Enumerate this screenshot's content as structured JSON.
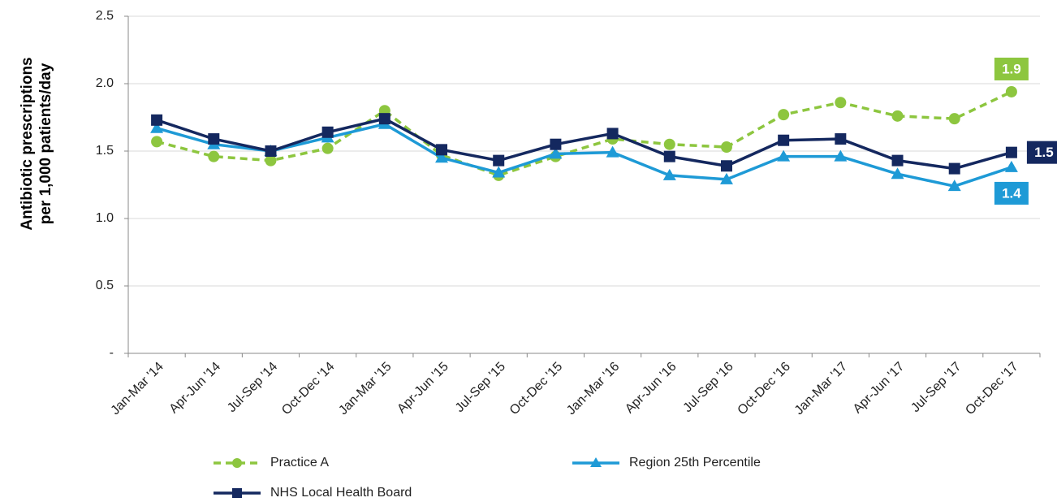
{
  "chart_data": {
    "type": "line",
    "ylabel": [
      "Antibiotic prescriptions",
      "per 1,000 patients/day"
    ],
    "categories": [
      "Jan-Mar '14",
      "Apr-Jun '14",
      "Jul-Sep '14",
      "Oct-Dec '14",
      "Jan-Mar '15",
      "Apr-Jun '15",
      "Jul-Sep '15",
      "Oct-Dec '15",
      "Jan-Mar '16",
      "Apr-Jun '16",
      "Jul-Sep '16",
      "Oct-Dec '16",
      "Jan-Mar '17",
      "Apr-Jun '17",
      "Jul-Sep '17",
      "Oct-Dec '17"
    ],
    "ylim": [
      0,
      2.5
    ],
    "yticks": [
      {
        "value": 0,
        "label": "-"
      },
      0.5,
      {
        "value": 1,
        "label": "1.0"
      },
      1.5,
      {
        "value": 2,
        "label": "2.0"
      },
      2.5
    ],
    "grid": true,
    "series": [
      {
        "name": "Practice A",
        "color": "#8dc63f",
        "marker": "circle",
        "dashed": true,
        "values": [
          1.57,
          1.46,
          1.43,
          1.52,
          1.8,
          1.47,
          1.32,
          1.46,
          1.59,
          1.55,
          1.53,
          1.77,
          1.86,
          1.76,
          1.74,
          1.94
        ],
        "value_labels": [
          null,
          null,
          null,
          null,
          null,
          null,
          null,
          null,
          null,
          null,
          null,
          null,
          null,
          null,
          null,
          "1.9"
        ]
      },
      {
        "name": "Region 25th Percentile",
        "color": "#1e9ad6",
        "marker": "triangle",
        "dashed": false,
        "values": [
          1.67,
          1.55,
          1.5,
          1.6,
          1.7,
          1.45,
          1.34,
          1.48,
          1.49,
          1.32,
          1.29,
          1.46,
          1.46,
          1.33,
          1.24,
          1.38
        ],
        "value_labels": [
          null,
          null,
          null,
          null,
          null,
          null,
          null,
          null,
          null,
          null,
          null,
          null,
          null,
          null,
          null,
          "1.4"
        ]
      },
      {
        "name": "NHS Local Health Board",
        "color": "#14285f",
        "marker": "square",
        "dashed": false,
        "values": [
          1.73,
          1.59,
          1.5,
          1.64,
          1.74,
          1.51,
          1.43,
          1.55,
          1.63,
          1.46,
          1.39,
          1.58,
          1.59,
          1.43,
          1.37,
          1.49
        ],
        "value_labels": [
          null,
          null,
          null,
          null,
          null,
          null,
          null,
          null,
          null,
          null,
          null,
          null,
          null,
          null,
          null,
          "1.5"
        ]
      }
    ]
  }
}
